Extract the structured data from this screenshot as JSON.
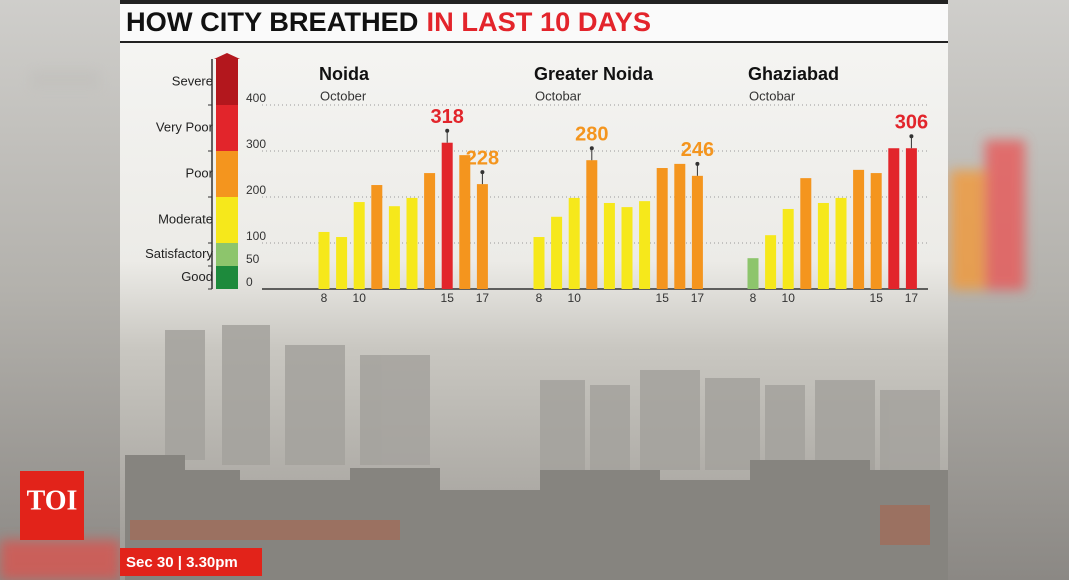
{
  "header": {
    "title": "HOW CITY BREATHED",
    "title_highlight": "IN LAST 10 DAYS"
  },
  "scale": {
    "ticks": [
      0,
      50,
      100,
      200,
      300,
      400
    ],
    "grid": true,
    "bands": [
      {
        "label": "Good",
        "from": 0,
        "to": 50,
        "color": "#1d8a3c"
      },
      {
        "label": "Satisfactory",
        "from": 50,
        "to": 100,
        "color": "#8dc56c"
      },
      {
        "label": "Moderate",
        "from": 100,
        "to": 200,
        "color": "#f6e81b"
      },
      {
        "label": "Poor",
        "from": 200,
        "to": 300,
        "color": "#f4951e"
      },
      {
        "label": "Very Poor",
        "from": 300,
        "to": 400,
        "color": "#e2252b"
      },
      {
        "label": "Severe",
        "from": 400,
        "to": 500,
        "color": "#b3171d"
      }
    ]
  },
  "chart_data": [
    {
      "type": "bar",
      "title": "Noida",
      "subtitle": "October",
      "categories": [
        "8",
        null,
        "10",
        null,
        null,
        null,
        null,
        "15",
        null,
        "17"
      ],
      "values": [
        124,
        113,
        189,
        226,
        180,
        198,
        252,
        318,
        291,
        228
      ],
      "value_labels": [
        null,
        null,
        null,
        null,
        null,
        null,
        null,
        "318",
        null,
        "228"
      ],
      "ylim": [
        0,
        500
      ]
    },
    {
      "type": "bar",
      "title": "Greater Noida",
      "subtitle": "Octobar",
      "categories": [
        "8",
        null,
        "10",
        null,
        null,
        null,
        null,
        "15",
        null,
        "17"
      ],
      "values": [
        113,
        157,
        198,
        280,
        187,
        178,
        191,
        263,
        272,
        246
      ],
      "value_labels": [
        null,
        null,
        null,
        "280",
        null,
        null,
        null,
        null,
        null,
        "246"
      ],
      "ylim": [
        0,
        500
      ]
    },
    {
      "type": "bar",
      "title": "Ghaziabad",
      "subtitle": "Octobar",
      "categories": [
        "8",
        null,
        "10",
        null,
        null,
        null,
        null,
        "15",
        null,
        "17"
      ],
      "values": [
        67,
        117,
        174,
        241,
        187,
        198,
        259,
        252,
        306,
        306
      ],
      "value_labels": [
        null,
        null,
        null,
        null,
        null,
        null,
        null,
        null,
        null,
        "306"
      ],
      "ylim": [
        0,
        500
      ]
    }
  ],
  "stamp": "Sec 30 | 3.30pm",
  "logo": "TOI"
}
